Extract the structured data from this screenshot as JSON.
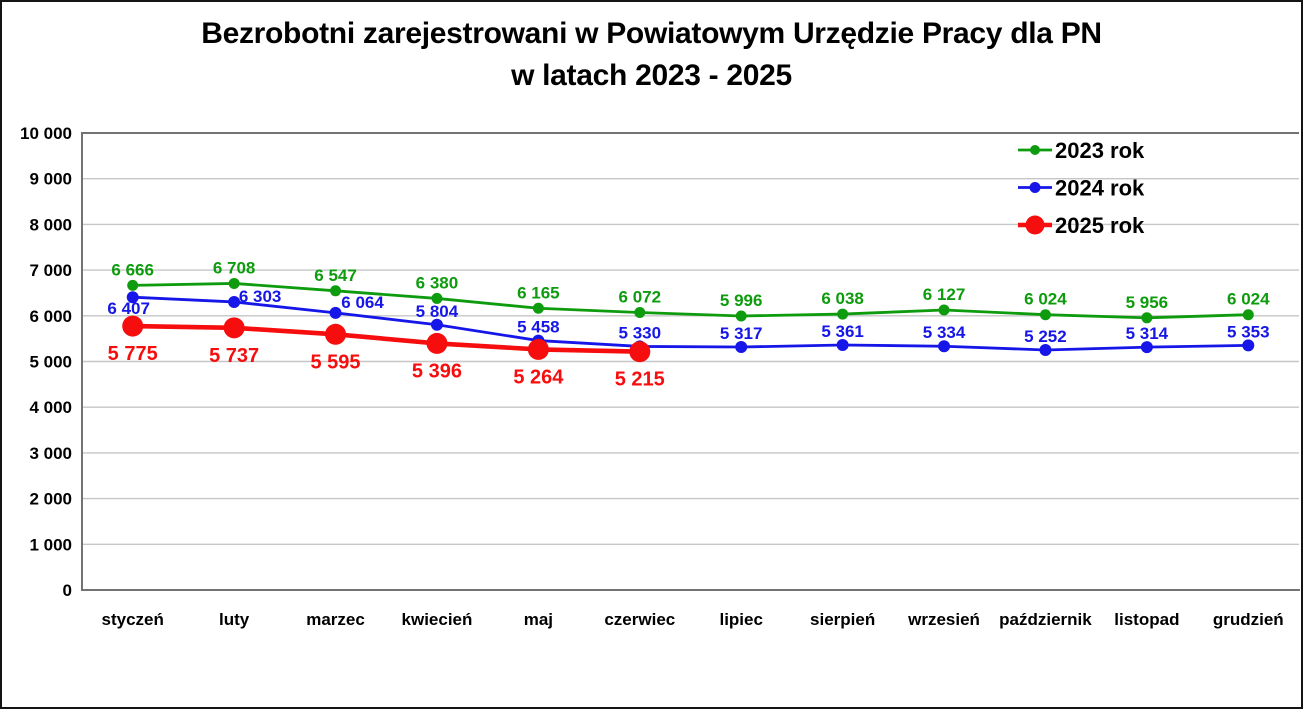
{
  "title": {
    "line1": "Bezrobotni zarejestrowani w Powiatowym Urzędzie Pracy dla PN",
    "line2": "w latach 2023 - 2025"
  },
  "chart_data": {
    "type": "line",
    "title": "Bezrobotni zarejestrowani w Powiatowym Urzędzie Pracy dla PN w latach 2023 - 2025",
    "categories": [
      "styczeń",
      "luty",
      "marzec",
      "kwiecień",
      "maj",
      "czerwiec",
      "lipiec",
      "sierpień",
      "wrzesień",
      "październik",
      "listopad",
      "grudzień"
    ],
    "series": [
      {
        "name": "2023 rok",
        "color": "#0E9C0E",
        "values": [
          6666,
          6708,
          6547,
          6380,
          6165,
          6072,
          5996,
          6038,
          6127,
          6024,
          5956,
          6024
        ],
        "labels": [
          "6 666",
          "6 708",
          "6 547",
          "6 380",
          "6 165",
          "6 072",
          "5 996",
          "6 038",
          "6 127",
          "6 024",
          "5 956",
          "6 024"
        ]
      },
      {
        "name": "2024 rok",
        "color": "#1616E8",
        "values": [
          6407,
          6303,
          6064,
          5804,
          5458,
          5330,
          5317,
          5361,
          5334,
          5252,
          5314,
          5353
        ],
        "labels": [
          "6 407",
          "6 303",
          "6 064",
          "5 804",
          "5 458",
          "5 330",
          "5 317",
          "5 361",
          "5 334",
          "5 252",
          "5 314",
          "5 353"
        ]
      },
      {
        "name": "2025 rok",
        "color": "#F60D0D",
        "values": [
          5775,
          5737,
          5595,
          5396,
          5264,
          5215
        ],
        "labels": [
          "5 775",
          "5 737",
          "5 595",
          "5 396",
          "5 264",
          "5 215"
        ]
      }
    ],
    "ylim": [
      0,
      10000
    ],
    "ytick_step": 1000,
    "ytick_labels": [
      "10 000",
      "9 000",
      "8 000",
      "7 000",
      "6 000",
      "5 000",
      "4 000",
      "3 000",
      "2 000",
      "1 000",
      "0"
    ],
    "grid": true,
    "legend_position": "top-right",
    "colors": {
      "gridline": "#C6C6C6",
      "axis": "#737373",
      "text": "#000000",
      "background": "#FFFFFF"
    }
  }
}
